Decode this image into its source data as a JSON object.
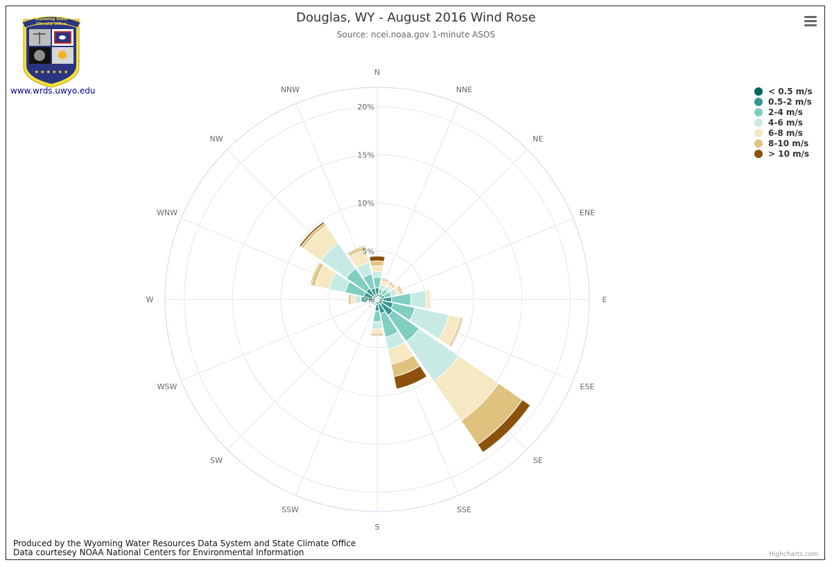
{
  "header": {
    "title": "Douglas, WY - August 2016 Wind Rose",
    "subtitle": "Source: ncei.noaa.gov 1-minute ASOS"
  },
  "logo": {
    "banner_line1": "Wyoming State",
    "banner_line2": "Climate Office",
    "website": "www.wrds.uwyo.edu"
  },
  "footer": {
    "line1": "Produced by the Wyoming Water Resources Data System and State Climate Office",
    "line2": "Data courtesey NOAA National Centers for Environmental Information"
  },
  "credits": "Highcharts.com",
  "chart_data": {
    "type": "windrose",
    "title": "Douglas, WY - August 2016 Wind Rose",
    "subtitle": "Source: ncei.noaa.gov 1-minute ASOS",
    "directions": [
      "N",
      "NNE",
      "NE",
      "ENE",
      "E",
      "ESE",
      "SE",
      "SSE",
      "S",
      "SSW",
      "SW",
      "WSW",
      "W",
      "WNW",
      "NW",
      "NNW"
    ],
    "radial_ticks": [
      "0%",
      "5%",
      "10%",
      "15%",
      "20%"
    ],
    "radial_max": 22,
    "grid": true,
    "legend_position": "top-right",
    "series": [
      {
        "name": "< 0.5 m/s",
        "color": "#01665e",
        "values": [
          0.5,
          0.3,
          0.3,
          0.4,
          0.6,
          0.6,
          0.6,
          0.5,
          0.5,
          0.3,
          0.3,
          0.3,
          0.4,
          0.5,
          0.5,
          0.5
        ]
      },
      {
        "name": "0.5-2 m/s",
        "color": "#35978f",
        "values": [
          0.7,
          0.3,
          0.4,
          0.4,
          0.9,
          1.1,
          1.4,
          1.0,
          0.7,
          0.2,
          0.2,
          0.2,
          0.5,
          0.9,
          0.9,
          0.7
        ]
      },
      {
        "name": "2-4 m/s",
        "color": "#80cdc1",
        "values": [
          1.1,
          0.5,
          0.6,
          0.7,
          2.0,
          2.3,
          3.3,
          2.5,
          1.1,
          0.2,
          0.2,
          0.2,
          0.8,
          2.0,
          2.5,
          1.5
        ]
      },
      {
        "name": "4-6 m/s",
        "color": "#c7eae5",
        "values": [
          0.6,
          0.5,
          0.4,
          0.6,
          1.6,
          3.6,
          5.0,
          1.3,
          0.8,
          0.1,
          0.1,
          0.1,
          0.6,
          1.7,
          3.2,
          1.2
        ]
      },
      {
        "name": "6-8 m/s",
        "color": "#f6e8c3",
        "values": [
          0.6,
          0.4,
          0.3,
          0.3,
          0.4,
          1.2,
          5.0,
          1.6,
          0.4,
          0.1,
          0.1,
          0.1,
          0.4,
          1.5,
          2.2,
          1.4
        ]
      },
      {
        "name": "8-10 m/s",
        "color": "#dfc27d",
        "values": [
          0.5,
          0.2,
          0.2,
          0.2,
          0.1,
          0.2,
          3.0,
          1.3,
          0.2,
          0.1,
          0.1,
          0.1,
          0.2,
          0.4,
          0.3,
          0.3
        ]
      },
      {
        "name": "> 10 m/s",
        "color": "#8c510a",
        "values": [
          0.5,
          0.1,
          0.1,
          0.1,
          0.0,
          0.1,
          1.0,
          1.3,
          0.1,
          0.0,
          0.1,
          0.0,
          0.1,
          0.1,
          0.2,
          0.1
        ]
      }
    ]
  }
}
